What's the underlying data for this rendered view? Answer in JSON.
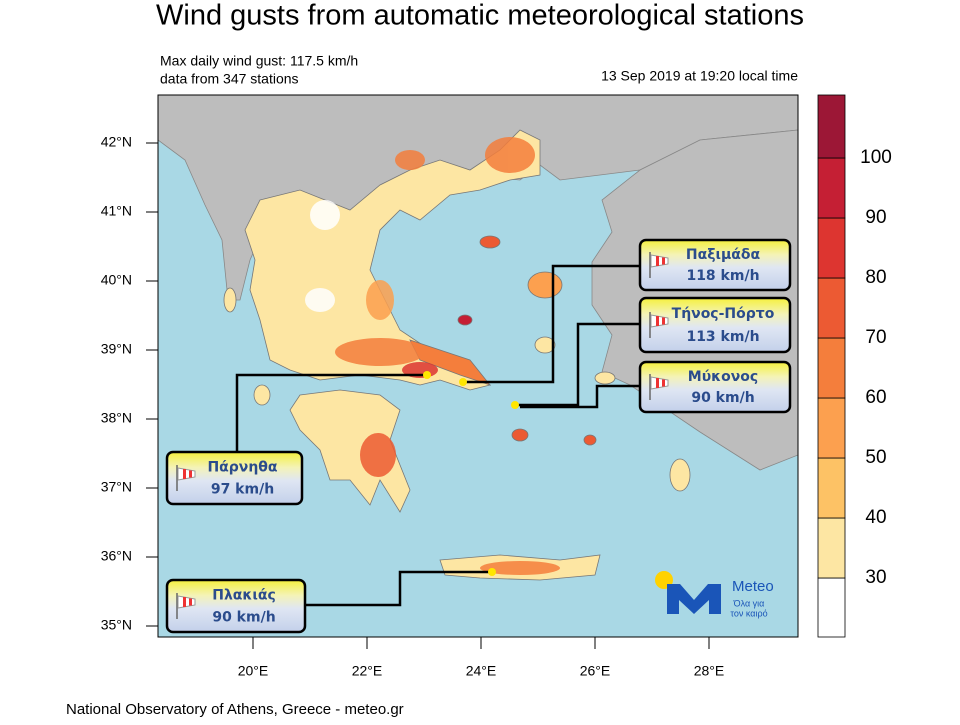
{
  "title": "Wind gusts from automatic meteorological stations",
  "info": {
    "max_gust": "Max daily wind gust: 117.5 km/h",
    "stations": "data from 347 stations"
  },
  "timestamp": "13 Sep 2019 at 19:20 local time",
  "lat_labels": [
    "42°N",
    "41°N",
    "40°N",
    "39°N",
    "38°N",
    "37°N",
    "36°N",
    "35°N"
  ],
  "lon_labels": [
    "20°E",
    "22°E",
    "24°E",
    "26°E",
    "28°E"
  ],
  "colorbar": {
    "labels": [
      30,
      40,
      50,
      60,
      70,
      80,
      90,
      100
    ],
    "colors": [
      "#ffffff",
      "#fde6a3",
      "#fdc265",
      "#fca04f",
      "#f47e3c",
      "#ec5a33",
      "#dd3530",
      "#c51f34",
      "#9c1736"
    ]
  },
  "callouts": [
    {
      "name": "Παξιμάδα",
      "speed": "118 km/h"
    },
    {
      "name": "Τήνος-Πόρτο",
      "speed": "113 km/h"
    },
    {
      "name": "Μύκονος",
      "speed": "90 km/h"
    },
    {
      "name": "Πάρνηθα",
      "speed": "97 km/h"
    },
    {
      "name": "Πλακιάς",
      "speed": "90 km/h"
    }
  ],
  "logo": {
    "name": "Meteo",
    "tagline_1": "Όλα για",
    "tagline_2": "τον καιρό"
  },
  "footer": "National Observatory of Athens, Greece - meteo.gr"
}
